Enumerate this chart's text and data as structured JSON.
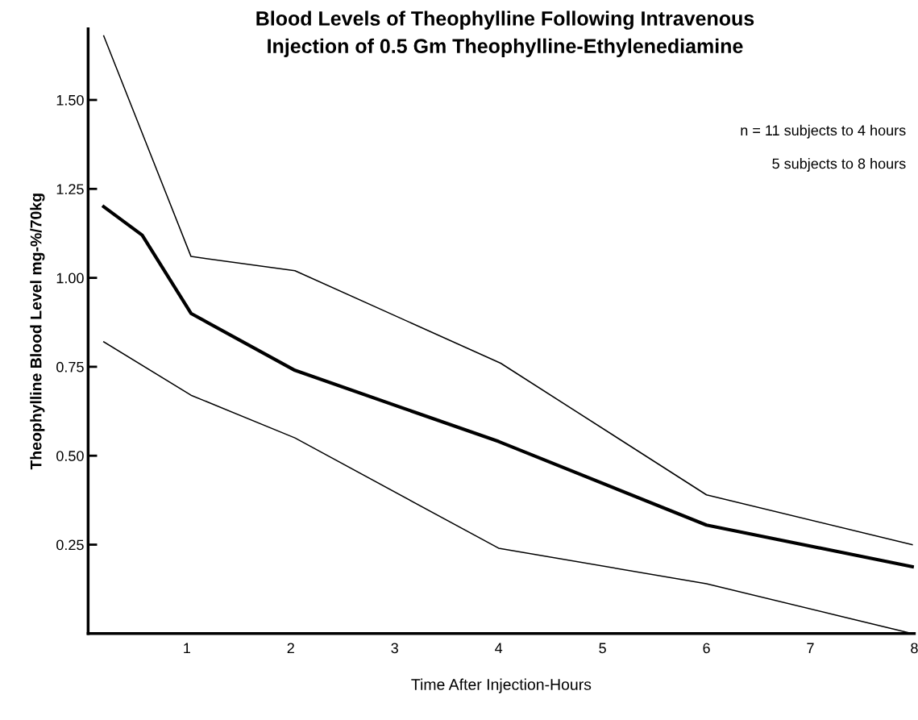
{
  "chart_data": {
    "type": "line",
    "title": "Blood Levels of Theophylline Following Intravenous\nInjection of 0.5 Gm Theophylline-Ethylenediamine",
    "xlabel": "Time After Injection-Hours",
    "ylabel": "Theophylline Blood Level mg-%/70kg",
    "annotations": [
      "n = 11 subjects to 4 hours",
      "5 subjects to 8 hours"
    ],
    "xlim": [
      0.05,
      8
    ],
    "xticks": [
      1,
      2,
      3,
      4,
      5,
      6,
      7,
      8
    ],
    "ylim": [
      0,
      1.7
    ],
    "yticks": [
      0.25,
      {
        "value": 0.5,
        "label": "0.50"
      },
      {
        "value": 0.75,
        "label": "0.75"
      },
      {
        "value": 1.0,
        "label": "1.00"
      },
      1.25,
      {
        "value": 1.5,
        "label": "1.50"
      }
    ],
    "grid": false,
    "marker": "none",
    "line_style": "solid",
    "series": [
      {
        "color": "#000000",
        "x": [
          0.2,
          1.04,
          2.04,
          4.02,
          6,
          7.98
        ],
        "values": [
          1.68,
          1.06,
          1.02,
          0.76,
          0.39,
          0.25
        ]
      },
      {
        "color": "#000000",
        "x": [
          0.2,
          0.57,
          1.04,
          2.04,
          4,
          6,
          7.98
        ],
        "values": [
          1.2,
          1.12,
          0.9,
          0.74,
          0.54,
          0.305,
          0.188
        ]
      },
      {
        "color": "#000000",
        "x": [
          0.2,
          1.04,
          2.04,
          4,
          6,
          7.98
        ],
        "values": [
          0.82,
          0.67,
          0.55,
          0.24,
          0.14,
          0.0
        ]
      }
    ]
  }
}
